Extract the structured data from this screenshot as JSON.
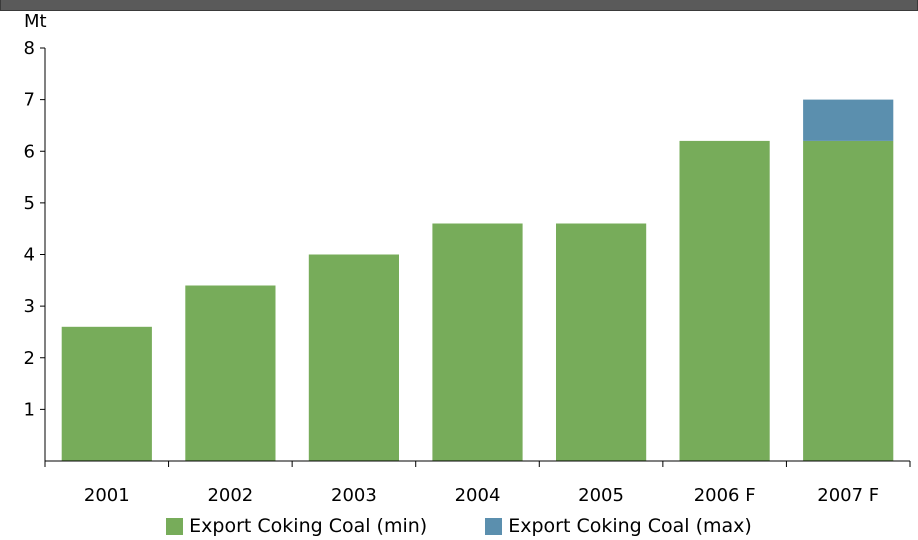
{
  "chart_data": {
    "type": "bar",
    "stacked": true,
    "title": "",
    "xlabel": "",
    "ylabel": "Mt",
    "ylim": [
      0,
      8
    ],
    "yticks": [
      1,
      2,
      3,
      4,
      5,
      6,
      7,
      8
    ],
    "grid": false,
    "legend_position": "bottom",
    "categories": [
      "2001",
      "2002",
      "2003",
      "2004",
      "2005",
      "2006 F",
      "2007 F"
    ],
    "series": [
      {
        "name": "Export Coking Coal (min)",
        "color": "#77ac5a",
        "values": [
          2.6,
          3.4,
          4.0,
          4.6,
          4.6,
          6.2,
          6.2
        ]
      },
      {
        "name": "Export Coking Coal (max)",
        "color": "#5b8fae",
        "values": [
          0,
          0,
          0,
          0,
          0,
          0,
          0.8
        ]
      }
    ]
  }
}
